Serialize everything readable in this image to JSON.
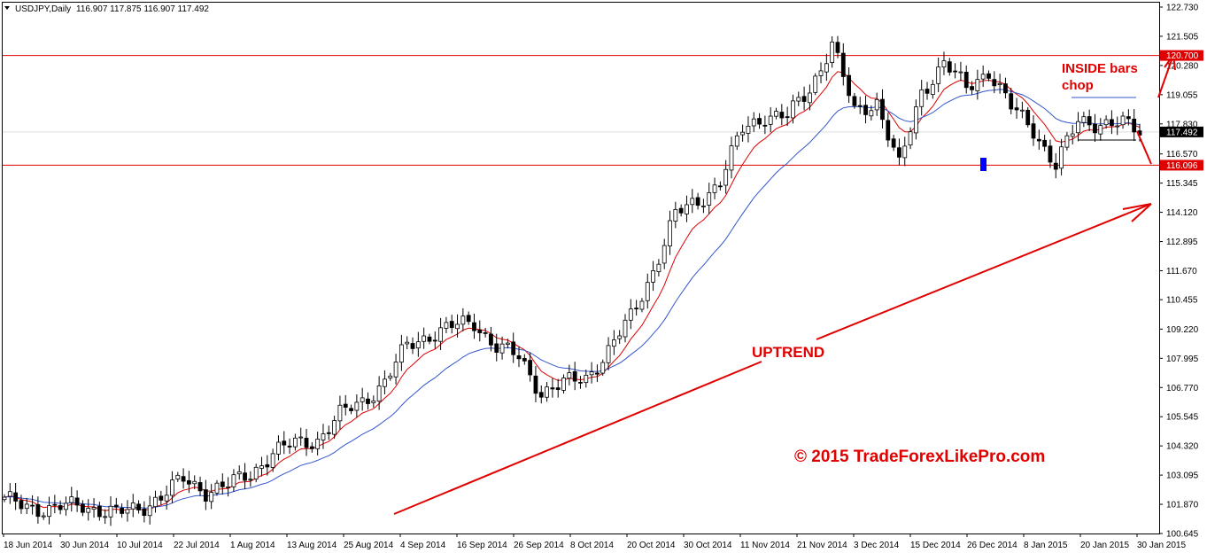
{
  "header": {
    "symbol": "USDJPY,Daily",
    "ohlc": "116.907 117.875 116.907 117.492"
  },
  "colors": {
    "up_candle": "#ffffff",
    "down_candle": "#000000",
    "candle_outline": "#000000",
    "ma_fast": "#e00000",
    "ma_slow": "#3355cc",
    "level": "#e00000",
    "annotation": "#e00000",
    "marker": "#0000ff"
  },
  "chart_data": {
    "type": "candlestick",
    "ylim": [
      100.645,
      122.73
    ],
    "y_ticks": [
      "122.730",
      "121.505",
      "120.280",
      "119.055",
      "117.830",
      "116.570",
      "115.345",
      "114.120",
      "112.895",
      "111.670",
      "110.455",
      "109.220",
      "107.995",
      "106.770",
      "105.545",
      "104.320",
      "103.095",
      "101.870",
      "100.645"
    ],
    "x_ticks": [
      "18 Jun 2014",
      "30 Jun 2014",
      "10 Jul 2014",
      "22 Jul 2014",
      "1 Aug 2014",
      "13 Aug 2014",
      "25 Aug 2014",
      "4 Sep 2014",
      "16 Sep 2014",
      "26 Sep 2014",
      "8 Oct 2014",
      "20 Oct 2014",
      "30 Oct 2014",
      "11 Nov 2014",
      "21 Nov 2014",
      "3 Dec 2014",
      "15 Dec 2014",
      "26 Dec 2014",
      "8 Jan 2015",
      "20 Jan 2015",
      "30 Jan 2015"
    ],
    "close_anchors": [
      [
        0,
        102.0
      ],
      [
        8,
        101.65
      ],
      [
        14,
        101.85
      ],
      [
        20,
        101.45
      ],
      [
        24,
        101.7
      ],
      [
        28,
        102.2
      ],
      [
        32,
        102.9
      ],
      [
        36,
        102.45
      ],
      [
        40,
        102.65
      ],
      [
        44,
        103.15
      ],
      [
        48,
        104.05
      ],
      [
        52,
        104.4
      ],
      [
        56,
        104.6
      ],
      [
        60,
        105.6
      ],
      [
        64,
        106.2
      ],
      [
        68,
        107.0
      ],
      [
        72,
        108.5
      ],
      [
        76,
        109.0
      ],
      [
        80,
        109.3
      ],
      [
        84,
        109.5
      ],
      [
        88,
        108.5
      ],
      [
        92,
        108.0
      ],
      [
        96,
        106.6
      ],
      [
        100,
        106.9
      ],
      [
        104,
        107.2
      ],
      [
        108,
        108.3
      ],
      [
        112,
        109.7
      ],
      [
        116,
        111.7
      ],
      [
        120,
        114.0
      ],
      [
        124,
        114.6
      ],
      [
        128,
        115.4
      ],
      [
        132,
        117.6
      ],
      [
        136,
        118.2
      ],
      [
        140,
        118.1
      ],
      [
        144,
        119.3
      ],
      [
        148,
        121.2
      ],
      [
        152,
        118.3
      ],
      [
        156,
        118.8
      ],
      [
        160,
        116.0
      ],
      [
        164,
        119.2
      ],
      [
        168,
        120.4
      ],
      [
        172,
        119.3
      ],
      [
        176,
        120.1
      ],
      [
        180,
        118.5
      ],
      [
        184,
        117.6
      ],
      [
        188,
        116.1
      ],
      [
        192,
        117.9
      ],
      [
        196,
        117.9
      ],
      [
        200,
        117.8
      ],
      [
        203,
        117.49
      ]
    ],
    "candle_count": 204,
    "levels": [
      {
        "value": 120.7,
        "label": "120.700"
      },
      {
        "value": 116.096,
        "label": "116.096"
      }
    ],
    "current_price": {
      "value": 117.492,
      "label": "117.492"
    },
    "annotations": {
      "uptrend": "UPTREND",
      "inside_line1": "INSIDE bars",
      "inside_line2": "chop",
      "copyright": "© 2015 TradeForexLikePro.com"
    }
  }
}
